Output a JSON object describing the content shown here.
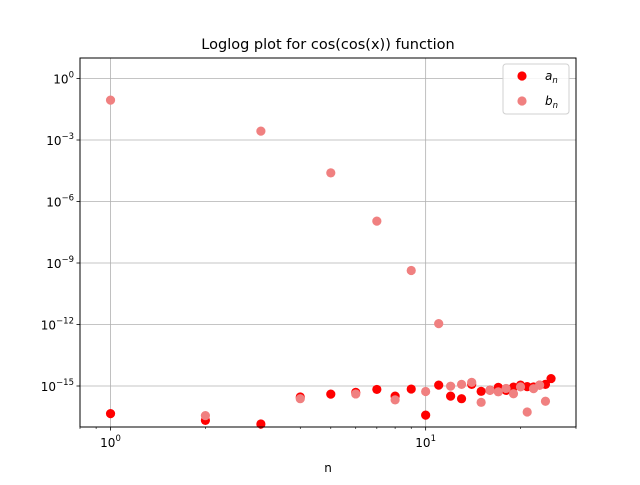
{
  "chart_data": {
    "type": "scatter",
    "title": "Loglog plot for cos(cos(x)) function",
    "xlabel": "n",
    "ylabel": "",
    "xscale": "log",
    "yscale": "log",
    "xlim": [
      0.8,
      30
    ],
    "ylim": [
      1e-17,
      10.0
    ],
    "grid": "major",
    "legend_position": "top-right",
    "x_ticks": [
      {
        "value": 1,
        "base": "10",
        "exp": "0"
      },
      {
        "value": 10,
        "base": "10",
        "exp": "1"
      }
    ],
    "y_ticks": [
      {
        "value": 1.0,
        "base": "10",
        "exp": "0"
      },
      {
        "value": 0.001,
        "base": "10",
        "exp": "−3"
      },
      {
        "value": 1e-06,
        "base": "10",
        "exp": "−6"
      },
      {
        "value": 1e-09,
        "base": "10",
        "exp": "−9"
      },
      {
        "value": 1e-12,
        "base": "10",
        "exp": "−12"
      },
      {
        "value": 1e-15,
        "base": "10",
        "exp": "−15"
      }
    ],
    "series": [
      {
        "name": "an",
        "legend_main": "a",
        "legend_sub": "n",
        "color": "#ff0000",
        "points": [
          [
            1,
            4.5e-17
          ],
          [
            2,
            2.1e-17
          ],
          [
            3,
            1.4e-17
          ],
          [
            4,
            2.9e-16
          ],
          [
            5,
            4e-16
          ],
          [
            6,
            4.9e-16
          ],
          [
            7,
            6.8e-16
          ],
          [
            8,
            3.2e-16
          ],
          [
            9,
            7.1e-16
          ],
          [
            10,
            3.8e-17
          ],
          [
            11,
            1.1e-15
          ],
          [
            12,
            3.2e-16
          ],
          [
            13,
            2.4e-16
          ],
          [
            14,
            1.2e-15
          ],
          [
            15,
            5.5e-16
          ],
          [
            16,
            6.2e-16
          ],
          [
            17,
            8.6e-16
          ],
          [
            18,
            6.1e-16
          ],
          [
            19,
            8.8e-16
          ],
          [
            20,
            1.1e-15
          ],
          [
            21,
            9.3e-16
          ],
          [
            22,
            9e-16
          ],
          [
            23,
            1.1e-15
          ],
          [
            24,
            1.2e-15
          ],
          [
            25,
            2.3e-15
          ]
        ]
      },
      {
        "name": "bn",
        "legend_main": "b",
        "legend_sub": "n",
        "color": "#f08080",
        "points": [
          [
            1,
            0.088
          ],
          [
            2,
            3.6e-17
          ],
          [
            3,
            0.0027
          ],
          [
            4,
            2.4e-16
          ],
          [
            5,
            2.5e-05
          ],
          [
            6,
            4.1e-16
          ],
          [
            7,
            1.1e-07
          ],
          [
            8,
            2.1e-16
          ],
          [
            9,
            4.3e-10
          ],
          [
            10,
            5.4e-16
          ],
          [
            11,
            1.1e-12
          ],
          [
            12,
            9.8e-16
          ],
          [
            13,
            1.2e-15
          ],
          [
            14,
            1.5e-15
          ],
          [
            15,
            1.6e-16
          ],
          [
            16,
            6.1e-16
          ],
          [
            17,
            5.2e-16
          ],
          [
            18,
            7.6e-16
          ],
          [
            19,
            4.2e-16
          ],
          [
            20,
            9.1e-16
          ],
          [
            21,
            5.4e-17
          ],
          [
            22,
            7.4e-16
          ],
          [
            23,
            1.1e-15
          ],
          [
            24,
            1.8e-16
          ]
        ]
      }
    ]
  }
}
